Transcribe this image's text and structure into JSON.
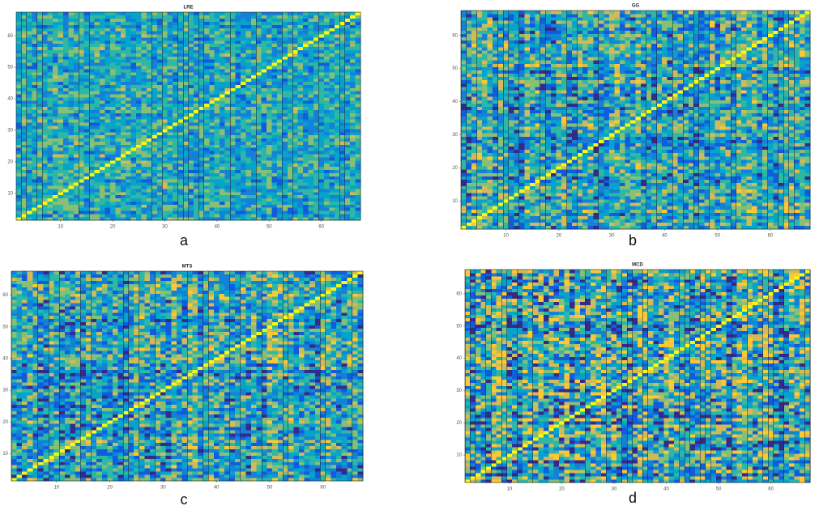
{
  "chart_data": [
    {
      "type": "heatmap",
      "title": "LRE",
      "label": "a",
      "xlim": [
        1.5,
        67.5
      ],
      "ylim": [
        1.5,
        67.5
      ],
      "xticks": [
        10,
        20,
        30,
        40,
        50,
        60
      ],
      "yticks": [
        10,
        20,
        30,
        40,
        50,
        60
      ]
    },
    {
      "type": "heatmap",
      "title": "GG",
      "label": "b",
      "xlim": [
        1.5,
        67.5
      ],
      "ylim": [
        1.5,
        67.5
      ],
      "xticks": [
        10,
        20,
        30,
        40,
        50,
        60
      ],
      "yticks": [
        10,
        20,
        30,
        40,
        50,
        60
      ]
    },
    {
      "type": "heatmap",
      "title": "MTS",
      "label": "c",
      "xlim": [
        1.5,
        67.5
      ],
      "ylim": [
        1.5,
        67.5
      ],
      "xticks": [
        10,
        20,
        30,
        40,
        50,
        60
      ],
      "yticks": [
        10,
        20,
        30,
        40,
        50,
        60
      ]
    },
    {
      "type": "heatmap",
      "title": "MCD",
      "label": "d",
      "xlim": [
        1.5,
        67.5
      ],
      "ylim": [
        1.5,
        67.5
      ],
      "xticks": [
        10,
        20,
        30,
        40,
        50,
        60
      ],
      "yticks": [
        10,
        20,
        30,
        40,
        50,
        60
      ]
    }
  ]
}
